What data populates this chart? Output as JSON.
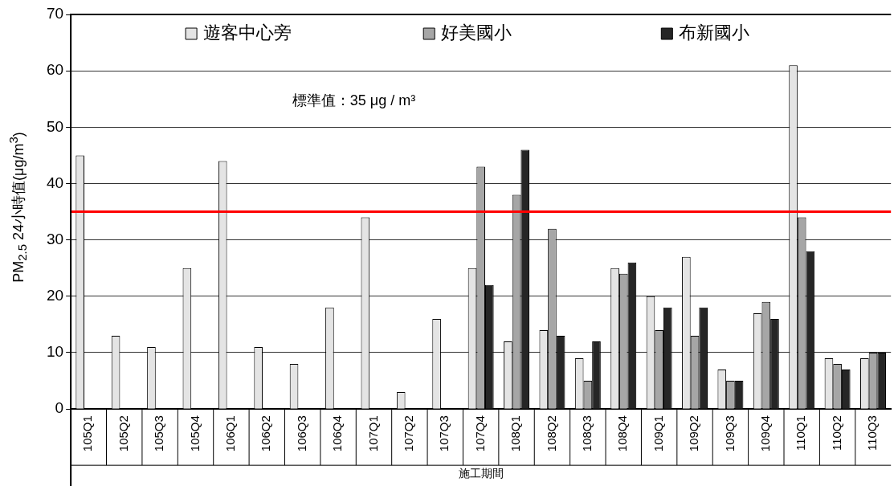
{
  "chart_data": {
    "type": "bar",
    "xlabel": "施工期間",
    "ylabel": "PM$_{2.5}$ 24小時值(μg/m$^{3}$)",
    "categories": [
      "105Q1",
      "105Q2",
      "105Q3",
      "105Q4",
      "106Q1",
      "106Q2",
      "106Q3",
      "106Q4",
      "107Q1",
      "107Q2",
      "107Q3",
      "107Q4",
      "108Q1",
      "108Q2",
      "108Q3",
      "108Q4",
      "109Q1",
      "109Q2",
      "109Q3",
      "109Q4",
      "110Q1",
      "110Q2",
      "110Q3"
    ],
    "series": [
      {
        "name": "遊客中心旁",
        "color": "#e4e4e4",
        "values": [
          45,
          13,
          11,
          25,
          44,
          11,
          8,
          18,
          34,
          3,
          16,
          25,
          12,
          14,
          9,
          25,
          20,
          27,
          7,
          17,
          61,
          9,
          9
        ]
      },
      {
        "name": "好美國小",
        "color": "#a6a6a6",
        "values": [
          null,
          null,
          null,
          null,
          null,
          null,
          null,
          null,
          null,
          null,
          null,
          43,
          38,
          32,
          5,
          24,
          14,
          13,
          5,
          19,
          34,
          8,
          10
        ]
      },
      {
        "name": "布新國小",
        "color": "#262626",
        "values": [
          null,
          null,
          null,
          null,
          null,
          null,
          null,
          null,
          null,
          null,
          null,
          22,
          46,
          13,
          12,
          26,
          18,
          18,
          5,
          16,
          28,
          7,
          10
        ]
      }
    ],
    "ylim": [
      0,
      70
    ],
    "yticks": [
      0,
      10,
      20,
      30,
      40,
      50,
      60,
      70
    ],
    "grid": "y",
    "legend": "top",
    "annotations": [
      "標準值：35 μg / m³"
    ],
    "ref_lines": [
      {
        "axis": "y",
        "value": 35,
        "color": "#ff0000"
      }
    ]
  }
}
